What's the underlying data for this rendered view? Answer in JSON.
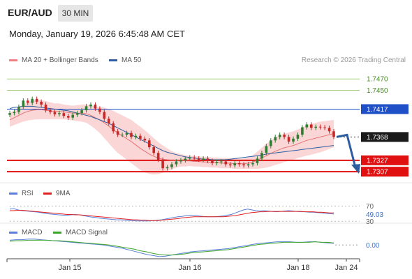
{
  "header": {
    "symbol": "EUR/AUD",
    "timeframe": "30 MIN",
    "datetime": "Monday, January 19, 2026 6:45:48 AM CET"
  },
  "legend": {
    "main": [
      {
        "label": "MA 20 + Bollinger Bands",
        "color": "#f08080"
      },
      {
        "label": "MA 50",
        "color": "#2d5d9f"
      }
    ],
    "rsi": [
      {
        "label": "RSI",
        "color": "#5a7fd6"
      },
      {
        "label": "9MA",
        "color": "#e02020"
      }
    ],
    "macd": [
      {
        "label": "MACD",
        "color": "#5a7fd6"
      },
      {
        "label": "MACD Signal",
        "color": "#3aa52a"
      }
    ]
  },
  "credit": "Research © 2026 Trading Central",
  "colors": {
    "green": "#a8d080",
    "blue": "#2050c8",
    "red": "#e01010",
    "up": "#2e7d32",
    "down": "#c62828",
    "band": "#f9c8c8",
    "arrow": "#2d5d9f"
  },
  "chart_data": {
    "type": "line",
    "price_scale": {
      "ylim": [
        1.729,
        1.7485
      ]
    },
    "levels": [
      {
        "value": 1.747,
        "label": "1.7470",
        "kind": "green"
      },
      {
        "value": 1.745,
        "label": "1.7450",
        "kind": "green"
      },
      {
        "value": 1.7417,
        "label": "1.7417",
        "kind": "blue"
      },
      {
        "value": 1.7368,
        "label": "1.7368",
        "kind": "current"
      },
      {
        "value": 1.7327,
        "label": "1.7327",
        "kind": "red"
      },
      {
        "value": 1.7307,
        "label": "1.7307",
        "kind": "red"
      }
    ],
    "x_ticks": [
      "Jan 15",
      "Jan 16",
      "Jan 18",
      "Jan 24"
    ],
    "close": [
      1.741,
      1.7412,
      1.7421,
      1.7432,
      1.7428,
      1.7435,
      1.743,
      1.7425,
      1.7415,
      1.7412,
      1.7408,
      1.741,
      1.7405,
      1.7402,
      1.7407,
      1.741,
      1.7415,
      1.7422,
      1.7425,
      1.7418,
      1.7412,
      1.74,
      1.7392,
      1.7378,
      1.7372,
      1.7372,
      1.7375,
      1.7368,
      1.737,
      1.7365,
      1.7362,
      1.735,
      1.734,
      1.7328,
      1.7313,
      1.7315,
      1.732,
      1.7325,
      1.7327,
      1.733,
      1.7332,
      1.733,
      1.7328,
      1.733,
      1.7326,
      1.7322,
      1.7324,
      1.7325,
      1.732,
      1.7318,
      1.7322,
      1.732,
      1.7318,
      1.732,
      1.7322,
      1.733,
      1.734,
      1.7352,
      1.7362,
      1.7368,
      1.7372,
      1.7368,
      1.736,
      1.7365,
      1.7372,
      1.7385,
      1.739,
      1.7384,
      1.7386,
      1.7385,
      1.7384,
      1.7378,
      1.7368
    ],
    "ma20": [
      1.7398,
      1.7402,
      1.7406,
      1.741,
      1.7413,
      1.7415,
      1.7416,
      1.7416,
      1.7415,
      1.7414,
      1.7413,
      1.7413,
      1.7412,
      1.7411,
      1.741,
      1.741,
      1.741,
      1.7409,
      1.7406,
      1.7402,
      1.7398,
      1.7393,
      1.7387,
      1.7381,
      1.7375,
      1.737,
      1.7365,
      1.736,
      1.7354,
      1.7348,
      1.7343,
      1.7338,
      1.7334,
      1.7331,
      1.7329,
      1.7328,
      1.7327,
      1.7327,
      1.7327,
      1.7326,
      1.7326,
      1.7325,
      1.7325,
      1.7324,
      1.7324,
      1.7323,
      1.7323,
      1.7322,
      1.7322,
      1.7322,
      1.7321,
      1.7321,
      1.7321,
      1.7322,
      1.7324,
      1.7327,
      1.7331,
      1.7335,
      1.7339,
      1.7343,
      1.7346,
      1.7349,
      1.7351,
      1.7353,
      1.7356,
      1.7359,
      1.7362,
      1.7364,
      1.7366,
      1.7368,
      1.737,
      1.7372,
      1.7374
    ],
    "ma50": [
      1.7418,
      1.742,
      1.7421,
      1.7422,
      1.7422,
      1.7422,
      1.7421,
      1.742,
      1.7419,
      1.7418,
      1.7417,
      1.7416,
      1.7415,
      1.7414,
      1.7412,
      1.741,
      1.7408,
      1.7406,
      1.7404,
      1.7401,
      1.7398,
      1.7395,
      1.7392,
      1.7388,
      1.7384,
      1.738,
      1.7376,
      1.7372,
      1.7368,
      1.7364,
      1.736,
      1.7356,
      1.7352,
      1.7348,
      1.7344,
      1.7341,
      1.7339,
      1.7337,
      1.7335,
      1.7333,
      1.7332,
      1.7331,
      1.733,
      1.7329,
      1.7329,
      1.7328,
      1.7328,
      1.7328,
      1.7328,
      1.7329,
      1.733,
      1.7331,
      1.7332,
      1.7333,
      1.7334,
      1.7335,
      1.7336,
      1.7338,
      1.7339,
      1.734,
      1.7341,
      1.7342,
      1.7343,
      1.7344,
      1.7345,
      1.7346,
      1.7347,
      1.7348,
      1.7349,
      1.735,
      1.7351,
      1.7352,
      1.7353
    ],
    "band_width": [
      0.0012,
      0.0013,
      0.0014,
      0.0015,
      0.0016,
      0.0017,
      0.0017,
      0.0017,
      0.0016,
      0.0015,
      0.0014,
      0.0014,
      0.0013,
      0.0013,
      0.0013,
      0.0014,
      0.0015,
      0.0016,
      0.0018,
      0.002,
      0.0023,
      0.0027,
      0.003,
      0.0033,
      0.0035,
      0.0036,
      0.0037,
      0.0038,
      0.0038,
      0.0038,
      0.0037,
      0.0035,
      0.0032,
      0.0028,
      0.0024,
      0.002,
      0.0016,
      0.0013,
      0.0011,
      0.001,
      0.0009,
      0.0009,
      0.0009,
      0.0009,
      0.0009,
      0.0009,
      0.0009,
      0.0009,
      0.0009,
      0.0009,
      0.0009,
      0.0009,
      0.0009,
      0.001,
      0.0012,
      0.0015,
      0.0018,
      0.0021,
      0.0023,
      0.0024,
      0.0025,
      0.0025,
      0.0025,
      0.0025,
      0.0025,
      0.0026,
      0.0027,
      0.0027,
      0.0027,
      0.0027,
      0.0026,
      0.0025,
      0.0024
    ],
    "forecast": [
      1.7368,
      1.7307
    ],
    "rsi": {
      "ticks": [
        "70",
        "30"
      ],
      "ylim": [
        25,
        80
      ],
      "value_label": "49.03",
      "values": [
        62,
        63,
        60,
        58,
        57,
        56,
        55,
        54,
        52,
        50,
        49,
        48,
        47,
        46,
        46,
        47,
        48,
        47,
        45,
        43,
        41,
        40,
        38,
        37,
        36,
        35,
        34,
        34,
        33,
        32,
        32,
        31,
        31,
        31,
        31,
        32,
        33,
        34,
        36,
        38,
        40,
        42,
        43,
        45,
        46,
        45,
        44,
        43,
        42,
        42,
        42,
        43,
        44,
        46,
        48,
        52,
        56,
        60,
        62,
        60,
        58,
        57,
        58,
        57,
        56,
        55,
        56,
        57,
        58,
        57,
        56,
        55,
        55,
        54,
        54,
        53,
        52,
        51,
        50,
        49
      ],
      "ma9": [
        58,
        58,
        59,
        59,
        58,
        57,
        56,
        55,
        54,
        53,
        52,
        51,
        50,
        49,
        48,
        48,
        47,
        47,
        46,
        45,
        44,
        43,
        42,
        41,
        40,
        39,
        38,
        37,
        36,
        35,
        34,
        34,
        33,
        33,
        32,
        32,
        32,
        33,
        34,
        35,
        36,
        37,
        39,
        40,
        41,
        42,
        42,
        42,
        42,
        42,
        42,
        42,
        42,
        43,
        44,
        45,
        47,
        49,
        51,
        53,
        54,
        55,
        55,
        56,
        56,
        56,
        56,
        56,
        56,
        56,
        56,
        56,
        55,
        55,
        55,
        54,
        54,
        53,
        52,
        52
      ]
    },
    "macd": {
      "ticks": [
        "0.00"
      ],
      "ylim": [
        -0.003,
        0.002
      ],
      "macd": [
        0.0009,
        0.001,
        0.001,
        0.0011,
        0.0011,
        0.001,
        0.0009,
        0.0008,
        0.0007,
        0.0006,
        0.0005,
        0.0004,
        0.0003,
        0.0002,
        0.0001,
        0.0,
        -0.0002,
        -0.0004,
        -0.0006,
        -0.0009,
        -0.0012,
        -0.0015,
        -0.0018,
        -0.002,
        -0.0022,
        -0.0021,
        -0.0019,
        -0.0017,
        -0.0015,
        -0.0013,
        -0.0012,
        -0.0011,
        -0.001,
        -0.0009,
        -0.0008,
        -0.0007,
        -0.0005,
        -0.0003,
        -0.0001,
        0.0001,
        0.0003,
        0.0004,
        0.0005,
        0.0006,
        0.0006,
        0.0006,
        0.0005,
        0.0005,
        0.0006,
        0.0006,
        0.0005,
        0.0004,
        0.0003
      ],
      "signal": [
        0.0007,
        0.0008,
        0.0008,
        0.0009,
        0.0009,
        0.0009,
        0.0009,
        0.0008,
        0.0008,
        0.0007,
        0.0006,
        0.0005,
        0.0004,
        0.0003,
        0.0002,
        0.0001,
        0.0,
        -0.0002,
        -0.0004,
        -0.0006,
        -0.0008,
        -0.0011,
        -0.0013,
        -0.0016,
        -0.0018,
        -0.0019,
        -0.0019,
        -0.0018,
        -0.0017,
        -0.0015,
        -0.0014,
        -0.0013,
        -0.0012,
        -0.0011,
        -0.001,
        -0.0009,
        -0.0007,
        -0.0005,
        -0.0003,
        -0.0001,
        0.0001,
        0.0002,
        0.0003,
        0.0004,
        0.0005,
        0.0005,
        0.0005,
        0.0005,
        0.0005,
        0.0006,
        0.0005,
        0.0005,
        0.0004
      ]
    }
  }
}
